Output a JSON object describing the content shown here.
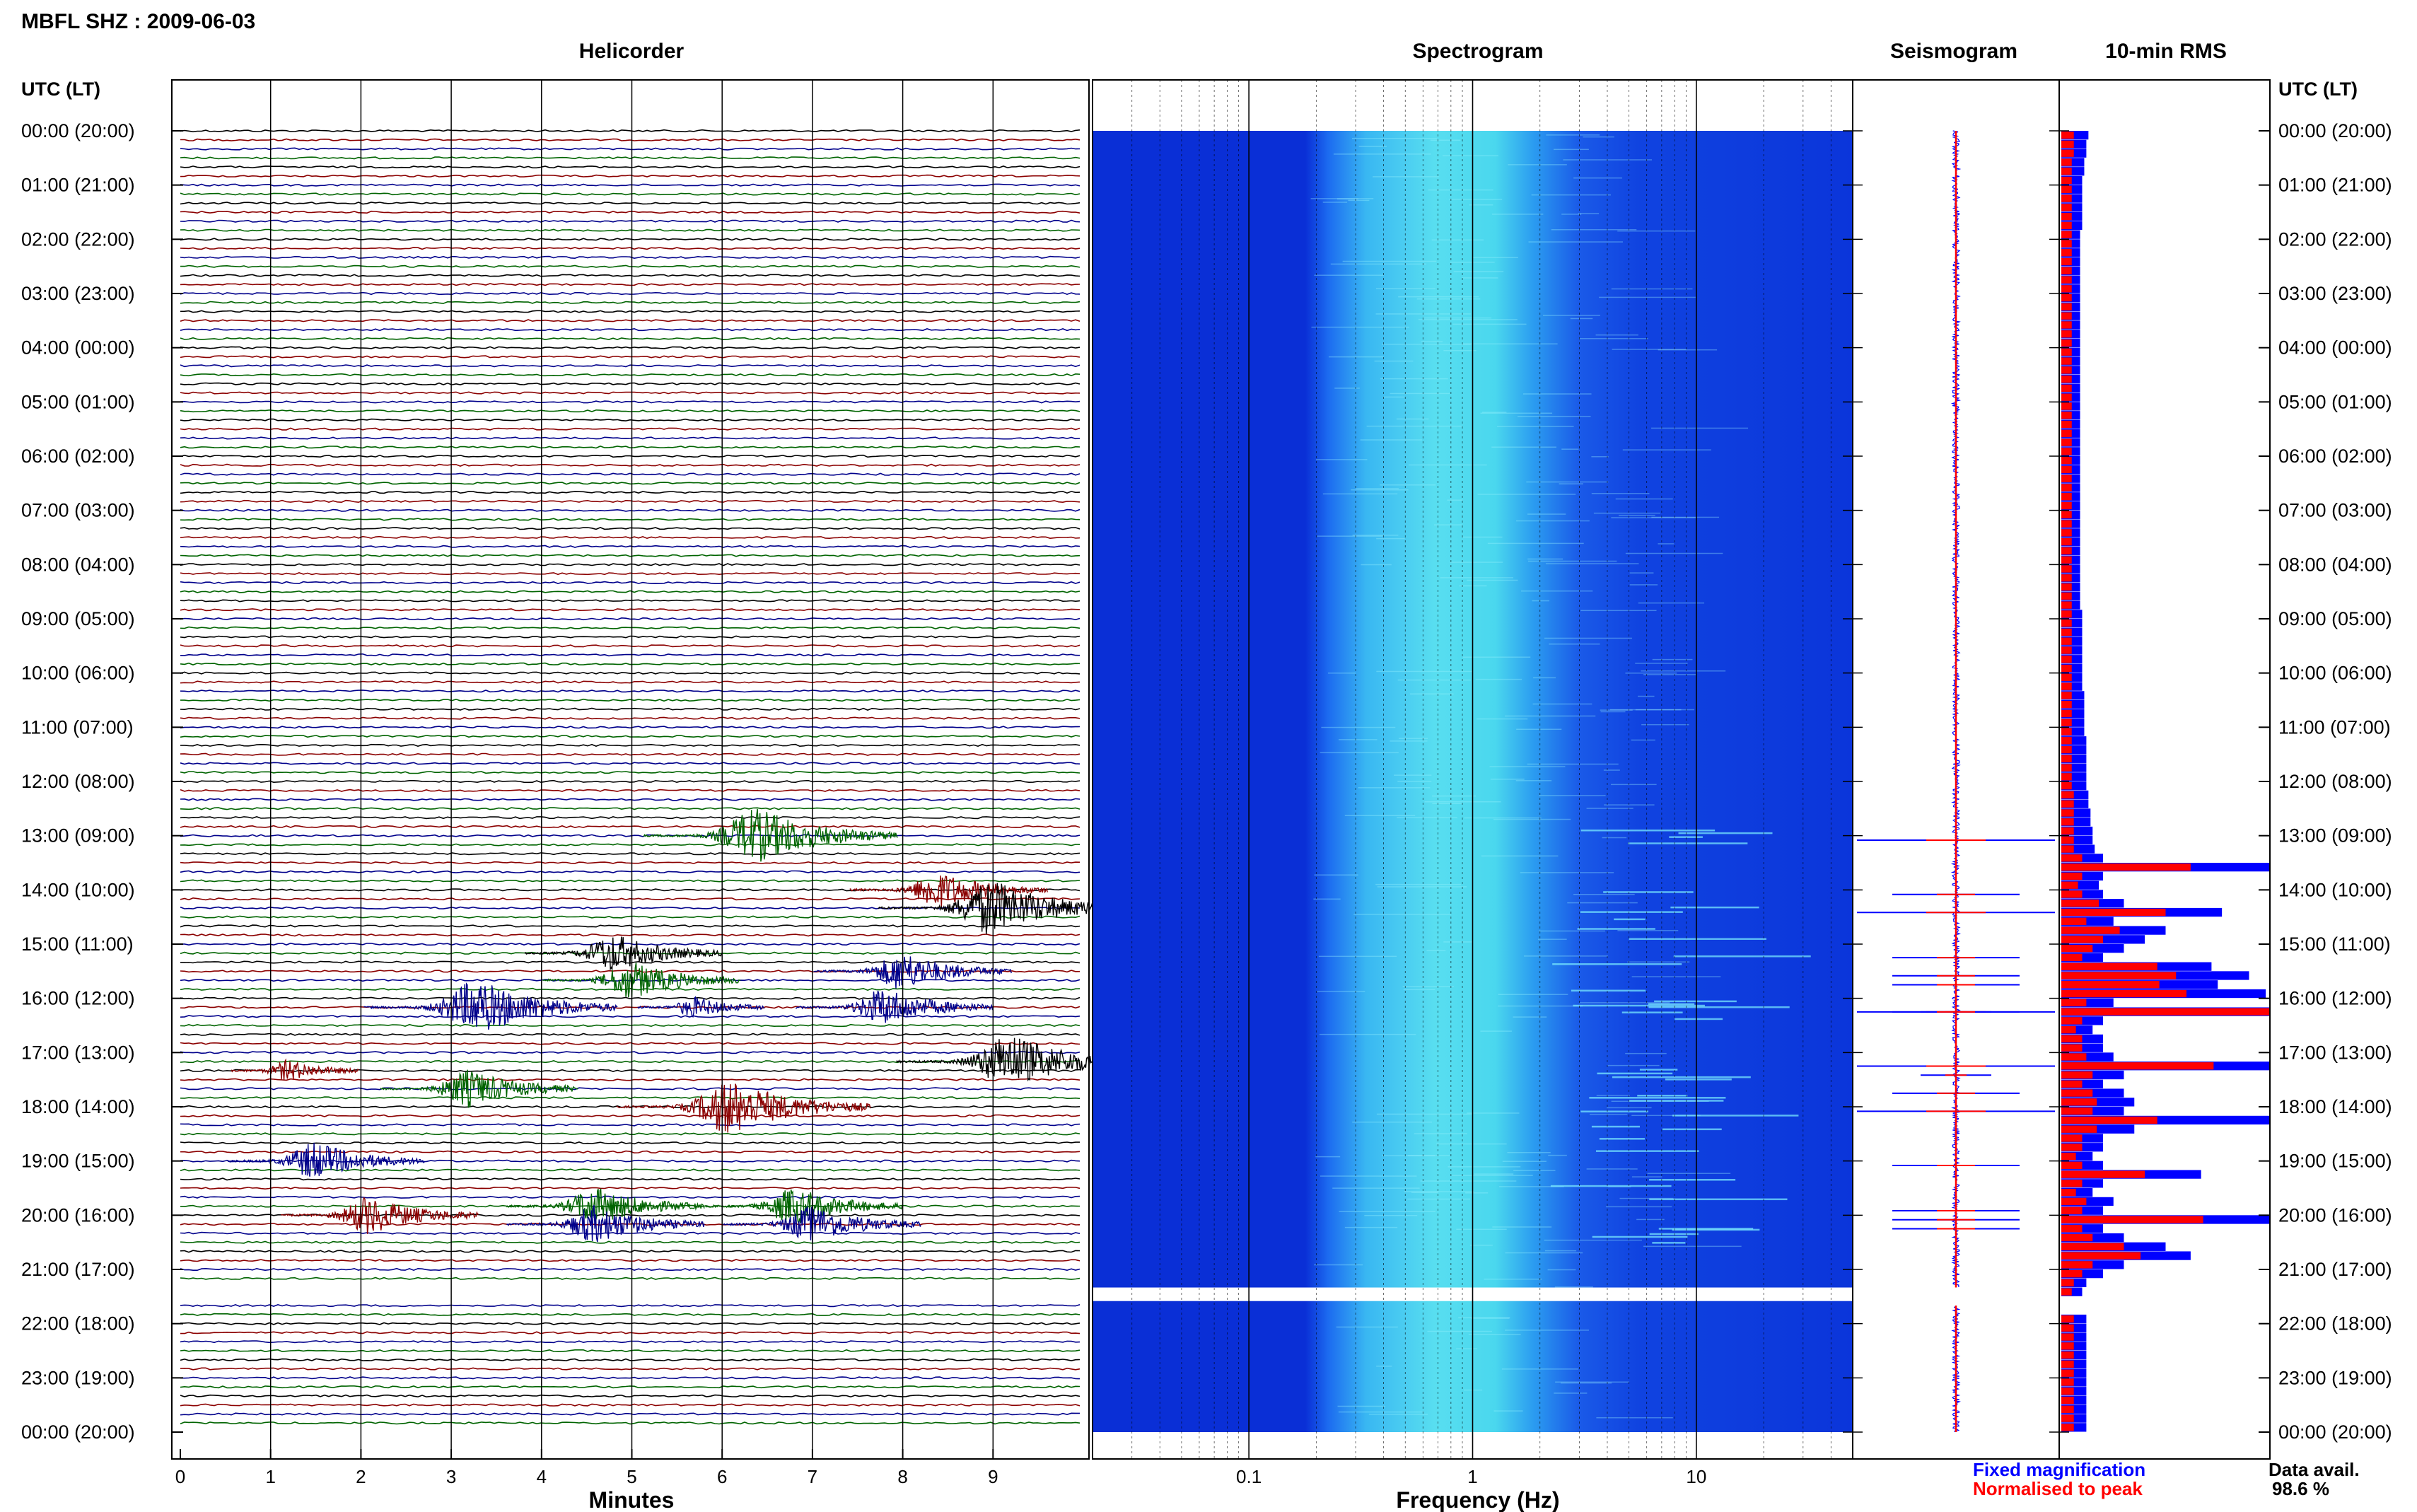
{
  "header": {
    "station_date": "MBFL SHZ : 2009-06-03",
    "utc_label_left": "UTC (LT)",
    "utc_label_right": "UTC (LT)"
  },
  "panels": {
    "helicorder_title": "Helicorder",
    "spectrogram_title": "Spectrogram",
    "seismogram_title": "Seismogram",
    "rms_title": "10-min RMS"
  },
  "axes": {
    "minutes_label": "Minutes",
    "frequency_label": "Frequency (Hz)"
  },
  "legend": {
    "fixed": "Fixed magnification",
    "normalised": "Normalised to peak",
    "fixed_color": "#0000ff",
    "normalised_color": "#ff0000"
  },
  "availability": {
    "label": "Data avail.",
    "value": "98.6 %"
  },
  "colors": {
    "trace_cycle": [
      "#000000",
      "#8b0000",
      "#00008b",
      "#006400"
    ],
    "spectrogram_dark": "#0a2bd8",
    "spectrogram_light": "#4fe3f0",
    "rms_blue": "#0000ff",
    "rms_red": "#ff0000"
  },
  "chart_data": [
    {
      "type": "line",
      "title": "Helicorder",
      "xlabel": "Minutes",
      "x_ticks": [
        "0",
        "1",
        "2",
        "3",
        "4",
        "5",
        "6",
        "7",
        "8",
        "9"
      ],
      "xlim": [
        0,
        10
      ],
      "y_ticks": [
        "00:00 (20:00)",
        "01:00 (21:00)",
        "02:00 (22:00)",
        "03:00 (23:00)",
        "04:00 (00:00)",
        "05:00 (01:00)",
        "06:00 (02:00)",
        "07:00 (03:00)",
        "08:00 (04:00)",
        "09:00 (05:00)",
        "10:00 (06:00)",
        "11:00 (07:00)",
        "12:00 (08:00)",
        "13:00 (09:00)",
        "14:00 (10:00)",
        "15:00 (11:00)",
        "16:00 (12:00)",
        "17:00 (13:00)",
        "18:00 (14:00)",
        "19:00 (15:00)",
        "20:00 (16:00)",
        "21:00 (17:00)",
        "22:00 (18:00)",
        "23:00 (19:00)",
        "00:00 (20:00)"
      ],
      "rows_per_hour": 6,
      "events": [
        {
          "time": "13:00",
          "minute": 6.4,
          "color": "#006400",
          "amplitude": "large"
        },
        {
          "time": "14:00",
          "minute": 8.4,
          "color": "#8b0000",
          "amplitude": "medium"
        },
        {
          "time": "14:20",
          "minute": 9.0,
          "color": "#000000",
          "amplitude": "large"
        },
        {
          "time": "15:10",
          "minute": 4.8,
          "color": "#000000",
          "amplitude": "medium"
        },
        {
          "time": "15:30",
          "minute": 8.0,
          "color": "#00008b",
          "amplitude": "medium"
        },
        {
          "time": "15:40",
          "minute": 5.0,
          "color": "#006400",
          "amplitude": "medium"
        },
        {
          "time": "16:10",
          "minute": 3.3,
          "color": "#00008b",
          "amplitude": "large"
        },
        {
          "time": "16:10",
          "minute": 5.7,
          "color": "#00008b",
          "amplitude": "small"
        },
        {
          "time": "16:10",
          "minute": 7.8,
          "color": "#00008b",
          "amplitude": "medium"
        },
        {
          "time": "17:10",
          "minute": 9.2,
          "color": "#000000",
          "amplitude": "large"
        },
        {
          "time": "17:20",
          "minute": 1.2,
          "color": "#8b0000",
          "amplitude": "small"
        },
        {
          "time": "17:40",
          "minute": 3.2,
          "color": "#006400",
          "amplitude": "medium"
        },
        {
          "time": "18:00",
          "minute": 6.1,
          "color": "#8b0000",
          "amplitude": "large"
        },
        {
          "time": "19:00",
          "minute": 1.5,
          "color": "#00008b",
          "amplitude": "medium"
        },
        {
          "time": "19:50",
          "minute": 4.6,
          "color": "#006400",
          "amplitude": "medium"
        },
        {
          "time": "19:50",
          "minute": 6.8,
          "color": "#006400",
          "amplitude": "medium"
        },
        {
          "time": "20:00",
          "minute": 2.1,
          "color": "#8b0000",
          "amplitude": "medium"
        },
        {
          "time": "20:10",
          "minute": 4.6,
          "color": "#00008b",
          "amplitude": "medium"
        },
        {
          "time": "20:10",
          "minute": 7.0,
          "color": "#00008b",
          "amplitude": "medium"
        }
      ],
      "data_gap": {
        "start": "21:20",
        "end": "21:40"
      }
    },
    {
      "type": "heatmap",
      "title": "Spectrogram",
      "xlabel": "Frequency (Hz)",
      "x_scale": "log",
      "xlim": [
        0.02,
        50
      ],
      "x_tick_labels": [
        "0.1",
        "1",
        "10"
      ],
      "energy_band_hz": [
        0.25,
        2.5
      ],
      "data_gap": {
        "start": "21:20",
        "end": "21:40"
      }
    },
    {
      "type": "line",
      "title": "Seismogram",
      "note": "10-min stacked seismogram traces, blue fixed magnification, red normalised"
    },
    {
      "type": "bar",
      "title": "10-min RMS",
      "orientation": "horizontal",
      "series": [
        {
          "name": "Fixed magnification",
          "color": "#0000ff"
        },
        {
          "name": "Normalised to peak",
          "color": "#ff0000"
        }
      ],
      "categories_per_hour": 6,
      "fixed_rms": [
        0.13,
        0.12,
        0.12,
        0.11,
        0.11,
        0.1,
        0.1,
        0.1,
        0.1,
        0.1,
        0.1,
        0.09,
        0.09,
        0.09,
        0.09,
        0.09,
        0.09,
        0.09,
        0.09,
        0.09,
        0.09,
        0.09,
        0.09,
        0.09,
        0.09,
        0.09,
        0.09,
        0.09,
        0.09,
        0.09,
        0.09,
        0.09,
        0.09,
        0.09,
        0.09,
        0.09,
        0.09,
        0.09,
        0.09,
        0.09,
        0.09,
        0.09,
        0.09,
        0.09,
        0.09,
        0.09,
        0.09,
        0.09,
        0.09,
        0.09,
        0.09,
        0.09,
        0.09,
        0.1,
        0.1,
        0.1,
        0.1,
        0.1,
        0.1,
        0.1,
        0.1,
        0.1,
        0.11,
        0.11,
        0.11,
        0.11,
        0.11,
        0.12,
        0.12,
        0.12,
        0.12,
        0.12,
        0.12,
        0.13,
        0.13,
        0.14,
        0.14,
        0.15,
        0.15,
        0.16,
        0.2,
        1.0,
        0.2,
        0.18,
        0.2,
        0.3,
        0.77,
        0.25,
        0.5,
        0.4,
        0.3,
        0.2,
        0.72,
        0.9,
        0.75,
        0.98,
        0.25,
        1.0,
        0.2,
        0.15,
        0.2,
        0.2,
        0.25,
        1.0,
        0.3,
        0.2,
        0.3,
        0.35,
        0.3,
        1.0,
        0.35,
        0.2,
        0.2,
        0.15,
        0.2,
        0.67,
        0.2,
        0.15,
        0.25,
        0.2,
        1.0,
        0.2,
        0.3,
        0.5,
        0.62,
        0.3,
        0.2,
        0.12,
        0.1,
        0.0,
        0.0,
        0.12,
        0.12,
        0.12,
        0.12,
        0.12,
        0.12,
        0.12,
        0.12,
        0.12,
        0.12,
        0.12,
        0.12,
        0.12
      ],
      "normalised_rms": [
        0.06,
        0.06,
        0.06,
        0.05,
        0.05,
        0.05,
        0.05,
        0.05,
        0.05,
        0.05,
        0.05,
        0.05,
        0.05,
        0.05,
        0.05,
        0.05,
        0.05,
        0.05,
        0.05,
        0.05,
        0.05,
        0.05,
        0.05,
        0.05,
        0.05,
        0.05,
        0.05,
        0.05,
        0.05,
        0.05,
        0.05,
        0.05,
        0.05,
        0.05,
        0.05,
        0.05,
        0.05,
        0.05,
        0.05,
        0.05,
        0.05,
        0.05,
        0.05,
        0.05,
        0.05,
        0.05,
        0.05,
        0.05,
        0.05,
        0.05,
        0.05,
        0.05,
        0.05,
        0.05,
        0.05,
        0.05,
        0.05,
        0.05,
        0.05,
        0.05,
        0.05,
        0.05,
        0.05,
        0.05,
        0.05,
        0.05,
        0.05,
        0.05,
        0.05,
        0.05,
        0.05,
        0.05,
        0.05,
        0.06,
        0.06,
        0.06,
        0.06,
        0.06,
        0.06,
        0.06,
        0.1,
        0.62,
        0.1,
        0.08,
        0.1,
        0.18,
        0.5,
        0.12,
        0.28,
        0.2,
        0.15,
        0.1,
        0.46,
        0.55,
        0.47,
        0.6,
        0.12,
        1.0,
        0.1,
        0.07,
        0.1,
        0.1,
        0.12,
        0.73,
        0.15,
        0.1,
        0.15,
        0.17,
        0.15,
        0.46,
        0.17,
        0.1,
        0.1,
        0.07,
        0.1,
        0.4,
        0.1,
        0.07,
        0.12,
        0.1,
        0.68,
        0.1,
        0.15,
        0.3,
        0.38,
        0.15,
        0.1,
        0.06,
        0.05,
        0.0,
        0.0,
        0.06,
        0.06,
        0.06,
        0.06,
        0.06,
        0.06,
        0.06,
        0.06,
        0.06,
        0.06,
        0.06,
        0.06,
        0.06
      ]
    }
  ]
}
